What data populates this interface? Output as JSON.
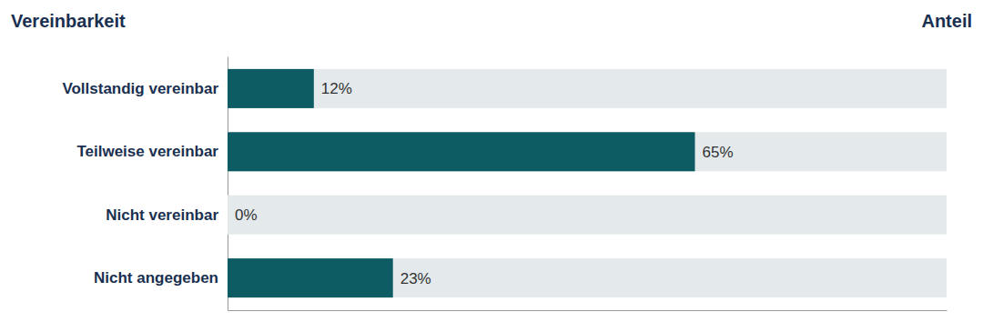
{
  "chart_data": {
    "type": "bar",
    "orientation": "horizontal",
    "xlabel": "Anteil",
    "ylabel": "Vereinbarkeit",
    "categories": [
      "Vollstandig vereinbar",
      "Teilweise vereinbar",
      "Nicht vereinbar",
      "Nicht angegeben"
    ],
    "values": [
      12,
      65,
      0,
      23
    ],
    "value_labels": [
      "12%",
      "65%",
      "0%",
      "23%"
    ],
    "color": "#0d5c63",
    "xlim": [
      0,
      100
    ],
    "data_labels": true,
    "tick_labels": "y",
    "grid": false
  }
}
